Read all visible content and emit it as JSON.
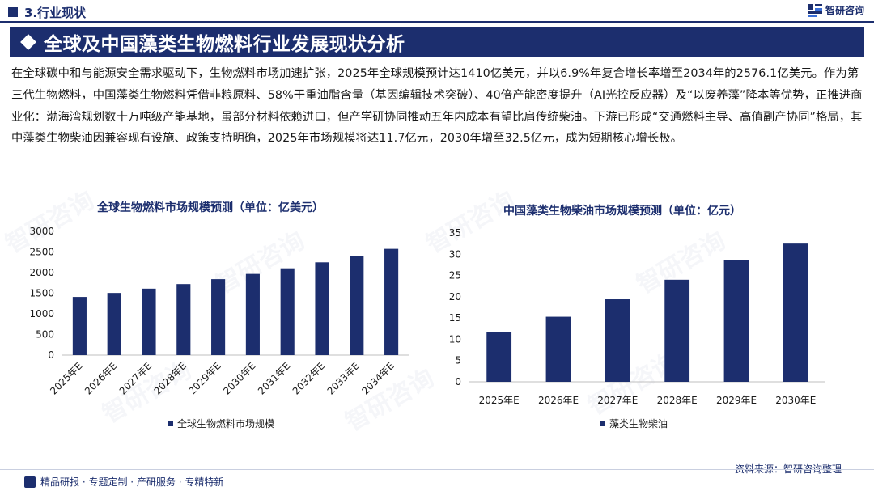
{
  "header": {
    "section": "3.行业现状",
    "brand": "智研咨询",
    "title": "全球及中国藻类生物燃料行业发展现状分析"
  },
  "intro": "在全球碳中和与能源安全需求驱动下，生物燃料市场加速扩张，2025年全球规模预计达1410亿美元，并以6.9%年复合增长率增至2034年的2576.1亿美元。作为第三代生物燃料，中国藻类生物燃料凭借非粮原料、58%干重油脂含量（基因编辑技术突破）、40倍产能密度提升（AI光控反应器）及“以废养藻”降本等优势，正推进商业化：渤海湾规划数十万吨级产能基地，虽部分材料依赖进口，但产学研协同推动五年内成本有望比肩传统柴油。下游已形成“交通燃料主导、高值副产协同”格局，其中藻类生物柴油因兼容现有设施、政策支持明确，2025年市场规模将达11.7亿元，2030年增至32.5亿元，成为短期核心增长极。",
  "chart_data": [
    {
      "type": "bar",
      "title": "全球生物燃料市场规模预测（单位：亿美元）",
      "categories": [
        "2025年E",
        "2026年E",
        "2027年E",
        "2028年E",
        "2029年E",
        "2030年E",
        "2031年E",
        "2032年E",
        "2033年E",
        "2034年E"
      ],
      "series": [
        {
          "name": "全球生物燃料市场规模",
          "values": [
            1410,
            1507,
            1611,
            1722,
            1841,
            1968,
            2104,
            2249,
            2404,
            2576.1
          ]
        }
      ],
      "ylim": [
        0,
        3000
      ],
      "yticks": [
        0,
        500,
        1000,
        1500,
        2000,
        2500,
        3000
      ],
      "legend": "bottom",
      "grid": false,
      "xlabel_rotation": -45
    },
    {
      "type": "bar",
      "title": "中国藻类生物柴油市场规模预测（单位：亿元）",
      "categories": [
        "2025年E",
        "2026年E",
        "2027年E",
        "2028年E",
        "2029年E",
        "2030年E"
      ],
      "series": [
        {
          "name": "藻类生物柴油",
          "values": [
            11.7,
            15.3,
            19.4,
            24.0,
            28.6,
            32.5
          ]
        }
      ],
      "ylim": [
        0,
        35
      ],
      "yticks": [
        0,
        5,
        10,
        15,
        20,
        25,
        30,
        35
      ],
      "legend": "bottom",
      "grid": false
    }
  ],
  "source": "资料来源：智研咨询整理",
  "footer": "精品研报 · 专题定制 · 产研服务 · 专精特新",
  "colors": {
    "primary": "#1c2e6e",
    "bar": "#1c2e6e",
    "axis": "#bfbfbf"
  }
}
